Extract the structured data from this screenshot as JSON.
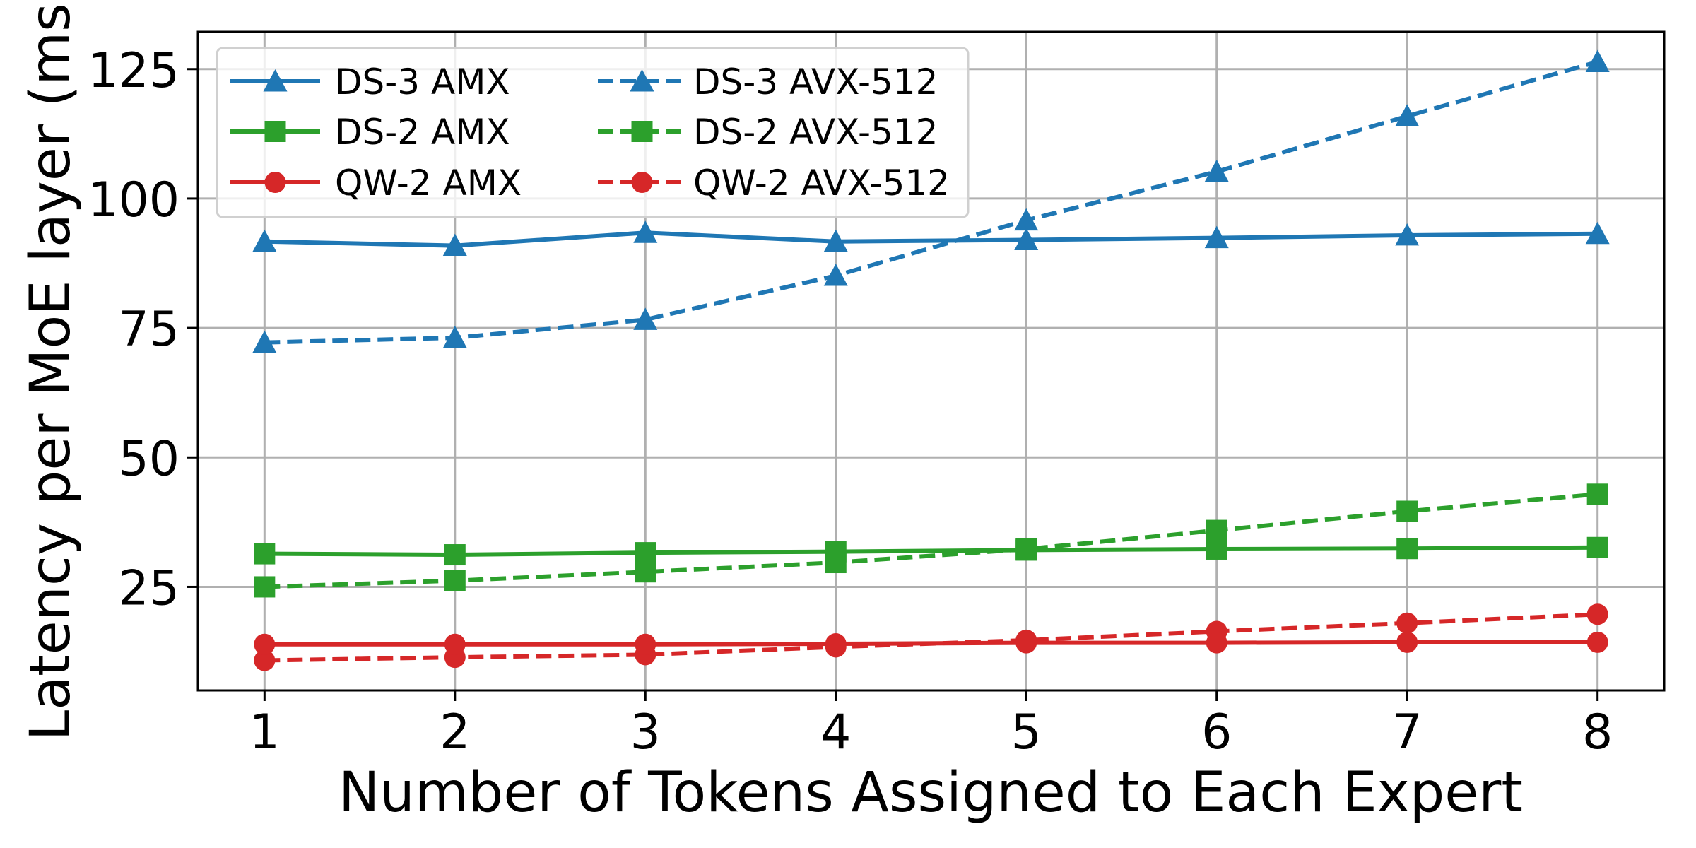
{
  "chart_data": {
    "type": "line",
    "title": "",
    "xlabel": "Number of Tokens Assigned to Each Expert",
    "ylabel": "Latency per MoE layer (ms)",
    "x": [
      1,
      2,
      3,
      4,
      5,
      6,
      7,
      8
    ],
    "xlim": [
      0.65,
      8.35
    ],
    "ylim": [
      5.0,
      132.2
    ],
    "xticks": [
      "1",
      "2",
      "3",
      "4",
      "5",
      "6",
      "7",
      "8"
    ],
    "yticks": [
      25,
      50,
      75,
      100,
      125
    ],
    "ytick_labels": [
      "25",
      "50",
      "75",
      "100",
      "125"
    ],
    "grid": true,
    "legend_placement": "upper-left",
    "legend_columns": 2,
    "series": [
      {
        "name": "DS-3 AMX",
        "color": "#1f77b4",
        "marker": "triangle",
        "linestyle": "solid",
        "values": [
          91.7,
          90.9,
          93.4,
          91.7,
          92.0,
          92.4,
          92.9,
          93.2
        ]
      },
      {
        "name": "DS-2 AMX",
        "color": "#2ca02c",
        "marker": "square",
        "linestyle": "solid",
        "values": [
          31.4,
          31.2,
          31.6,
          31.8,
          32.1,
          32.3,
          32.4,
          32.6
        ]
      },
      {
        "name": "QW-2 AMX",
        "color": "#d62728",
        "marker": "circle",
        "linestyle": "solid",
        "values": [
          13.9,
          13.9,
          13.9,
          14.0,
          14.2,
          14.2,
          14.3,
          14.3
        ]
      },
      {
        "name": "DS-3 AVX-512",
        "color": "#1f77b4",
        "marker": "triangle",
        "linestyle": "dashed",
        "values": [
          72.2,
          73.1,
          76.6,
          85.1,
          95.8,
          105.2,
          115.9,
          126.4
        ]
      },
      {
        "name": "DS-2 AVX-512",
        "color": "#2ca02c",
        "marker": "square",
        "linestyle": "dashed",
        "values": [
          25.0,
          26.2,
          27.9,
          29.7,
          32.3,
          35.9,
          39.6,
          42.9
        ]
      },
      {
        "name": "QW-2 AVX-512",
        "color": "#d62728",
        "marker": "circle",
        "linestyle": "dashed",
        "values": [
          10.8,
          11.4,
          11.9,
          13.4,
          14.7,
          16.4,
          18.0,
          19.7
        ]
      }
    ]
  }
}
